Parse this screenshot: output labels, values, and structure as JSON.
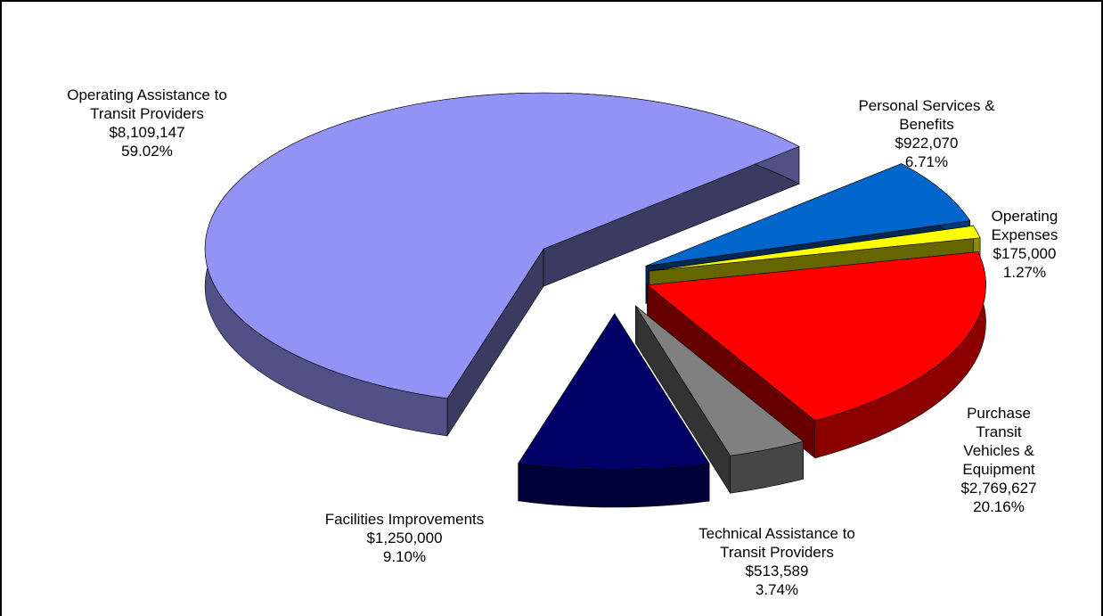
{
  "chart_data": {
    "type": "pie",
    "categories": [
      "Personal Services &\nBenefits",
      "Operating Expenses",
      "Purchase Transit\nVehicles & Equipment",
      "Technical Assistance to\nTransit Providers",
      "Facilities Improvements",
      "Operating Assistance to\nTransit Providers"
    ],
    "values": [
      6.71,
      1.27,
      20.16,
      3.74,
      9.1,
      59.02
    ],
    "value_labels": [
      "6.71%",
      "1.27%",
      "20.16%",
      "3.74%",
      "9.10%",
      "59.02%"
    ],
    "amount_labels": [
      "$922,070",
      "$175,000",
      "$2,769,627",
      "$513,589",
      "$1,250,000",
      "$8,109,147"
    ],
    "colors": [
      "#0066cc",
      "#ffff00",
      "#ff0000",
      "#808080",
      "#000066",
      "#9393f5"
    ]
  }
}
